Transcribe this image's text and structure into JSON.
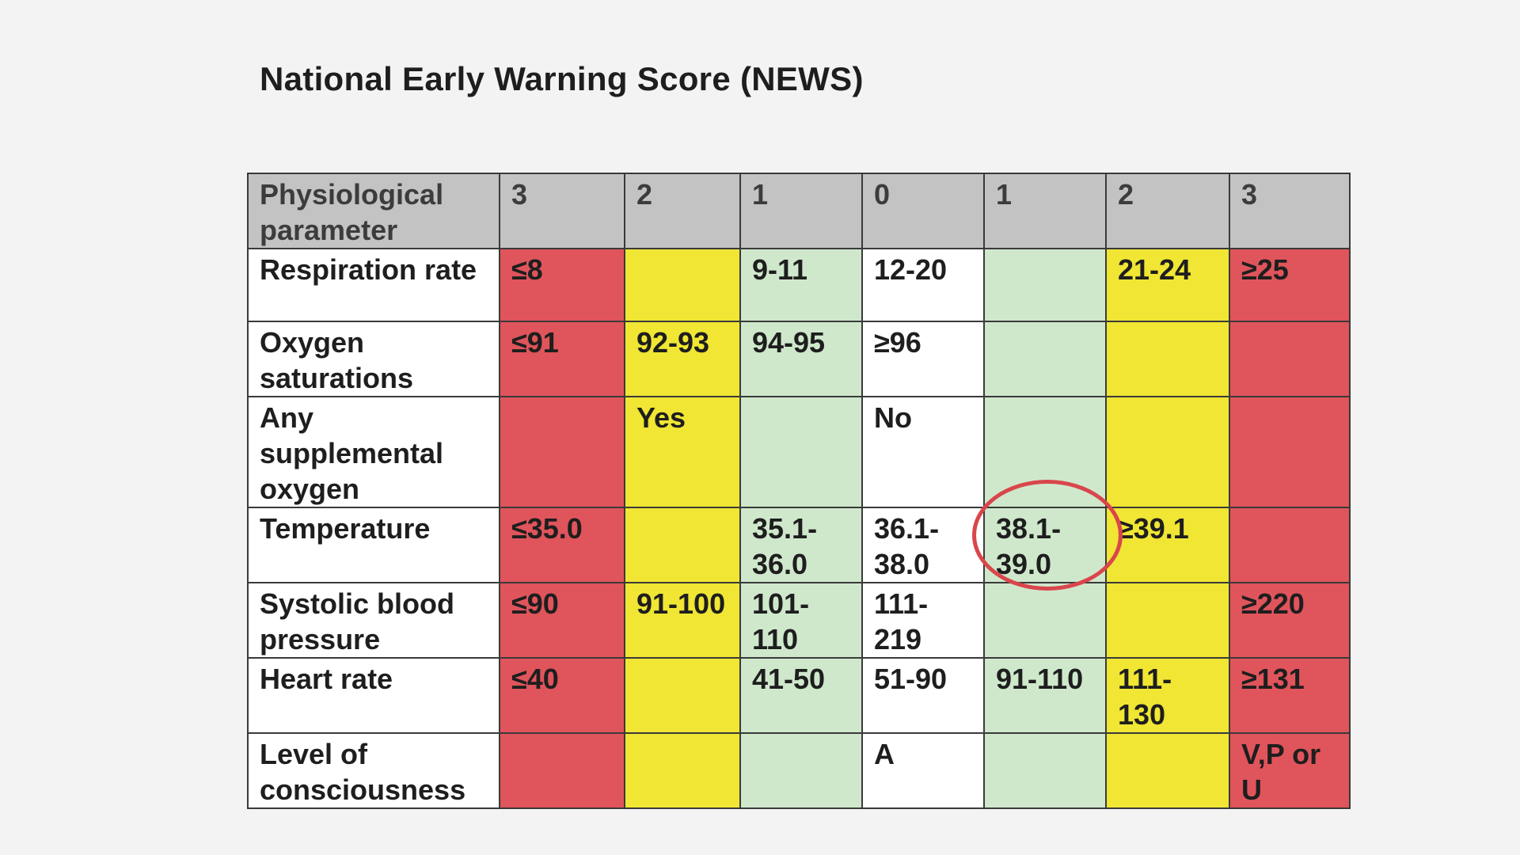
{
  "title": "National Early Warning Score (NEWS)",
  "table": {
    "header": [
      "Physiological parameter",
      "3",
      "2",
      "1",
      "0",
      "1",
      "2",
      "3"
    ],
    "rows": [
      {
        "label": "Respiration rate",
        "cells": [
          "≤8",
          "",
          "9-11",
          "12-20",
          "",
          "21-24",
          "≥25"
        ]
      },
      {
        "label": "Oxygen saturations",
        "cells": [
          "≤91",
          "92-93",
          "94-95",
          "≥96",
          "",
          "",
          ""
        ]
      },
      {
        "label": "Any supplemental oxygen",
        "cells": [
          "",
          "Yes",
          "",
          "No",
          "",
          "",
          ""
        ]
      },
      {
        "label": "Temperature",
        "cells": [
          "≤35.0",
          "",
          "35.1-36.0",
          "36.1-38.0",
          "38.1-39.0",
          "≥39.1",
          ""
        ]
      },
      {
        "label": "Systolic blood pressure",
        "cells": [
          "≤90",
          "91-100",
          "101-110",
          "111-219",
          "",
          "",
          "≥220"
        ]
      },
      {
        "label": "Heart rate",
        "cells": [
          "≤40",
          "",
          "41-50",
          "51-90",
          "91-110",
          "111-130",
          "≥131"
        ]
      },
      {
        "label": "Level of consciousness",
        "cells": [
          "",
          "",
          "",
          "A",
          "",
          "",
          "V,P or U"
        ]
      }
    ],
    "column_colors": [
      "#e0545b",
      "#f0e633",
      "#cfe8cc",
      "#ffffff",
      "#cfe8cc",
      "#f0e633",
      "#e0545b"
    ],
    "highlighted_cell": "Temperature 38.1-39.0"
  }
}
